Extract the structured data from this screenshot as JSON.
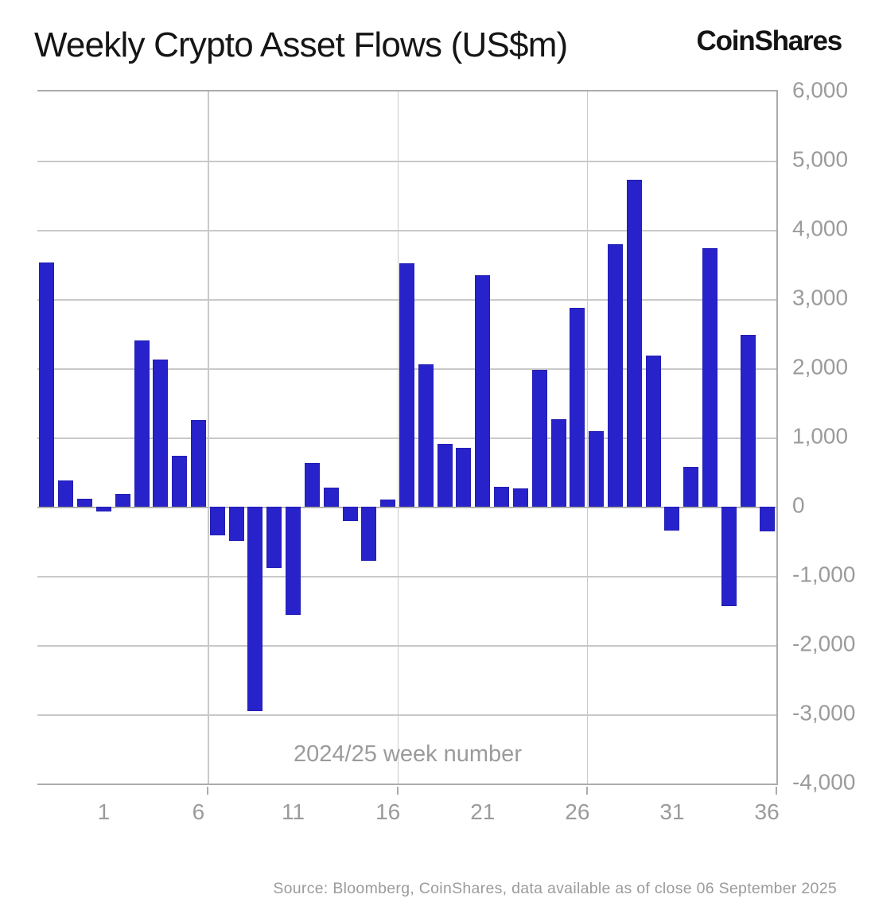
{
  "header": {
    "title": "Weekly Crypto Asset Flows (US$m)",
    "logo": "CoinShares"
  },
  "footer": {
    "source": "Source: Bloomberg, CoinShares, data available as of close 06 September 2025"
  },
  "chart_data": {
    "type": "bar",
    "title": "Weekly Crypto Asset Flows (US$m)",
    "xlabel": "2024/25 week number",
    "ylabel": "",
    "ylim": [
      -4000,
      6000
    ],
    "grid": true,
    "bar_color": "#2722c9",
    "weeks": [
      50,
      51,
      52,
      1,
      2,
      3,
      4,
      5,
      6,
      7,
      8,
      9,
      10,
      11,
      12,
      13,
      14,
      15,
      16,
      17,
      18,
      19,
      20,
      21,
      22,
      23,
      24,
      25,
      26,
      27,
      28,
      29,
      30,
      31,
      32,
      33,
      34,
      35,
      36
    ],
    "values": [
      3530,
      380,
      110,
      -65,
      180,
      2400,
      2130,
      740,
      1250,
      -410,
      -490,
      -2950,
      -880,
      -1560,
      630,
      280,
      -210,
      -780,
      100,
      3520,
      2060,
      910,
      850,
      3350,
      290,
      270,
      1980,
      1270,
      2870,
      1090,
      3790,
      4720,
      2180,
      -350,
      570,
      3730,
      -1440,
      2480,
      -360
    ],
    "y_ticks": [
      {
        "value": 6000,
        "label": "6,000"
      },
      {
        "value": 5000,
        "label": "5,000"
      },
      {
        "value": 4000,
        "label": "4,000"
      },
      {
        "value": 3000,
        "label": "3,000"
      },
      {
        "value": 2000,
        "label": "2,000"
      },
      {
        "value": 1000,
        "label": "1,000"
      },
      {
        "value": 0,
        "label": "0"
      },
      {
        "value": -1000,
        "label": "-1,000"
      },
      {
        "value": -2000,
        "label": "-2,000"
      },
      {
        "value": -3000,
        "label": "-3,000"
      },
      {
        "value": -4000,
        "label": "-4,000"
      }
    ],
    "x_ticks": [
      {
        "index": 3,
        "label": "1"
      },
      {
        "index": 8,
        "label": "6"
      },
      {
        "index": 13,
        "label": "11"
      },
      {
        "index": 18,
        "label": "16"
      },
      {
        "index": 23,
        "label": "21"
      },
      {
        "index": 28,
        "label": "26"
      },
      {
        "index": 33,
        "label": "31"
      },
      {
        "index": 38,
        "label": "36"
      }
    ],
    "x_gridline_boundaries": [
      9,
      19,
      29
    ],
    "x_axis_tick_boundaries": [
      9,
      19,
      29,
      39
    ]
  }
}
